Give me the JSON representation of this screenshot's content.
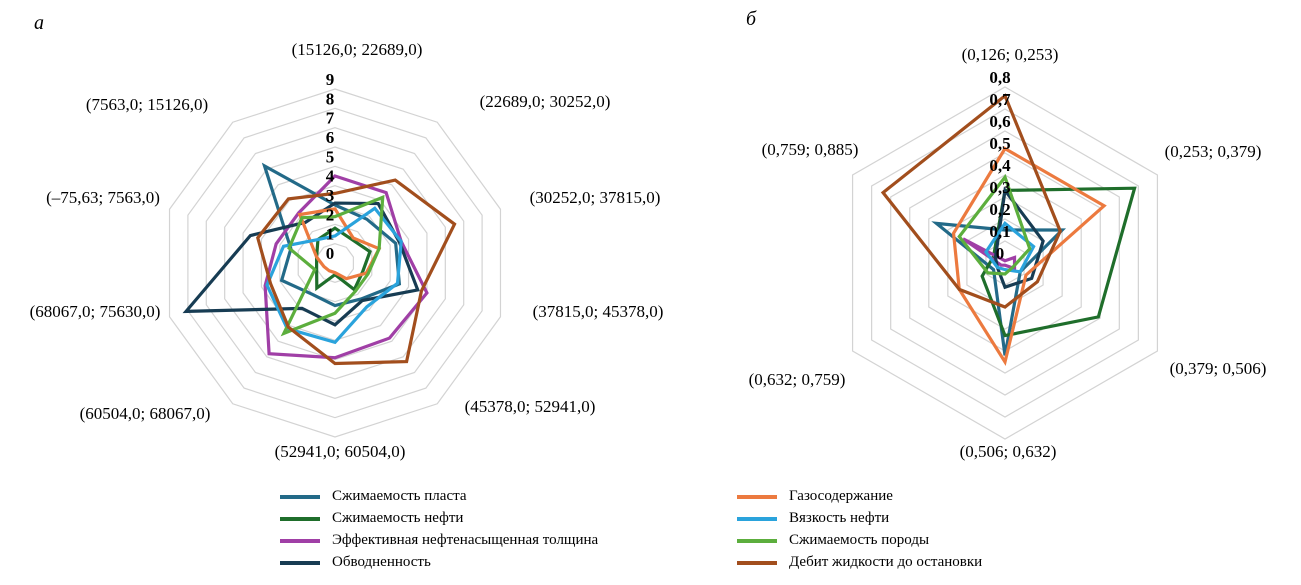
{
  "panels": {
    "a": "а",
    "b": "б"
  },
  "series": [
    {
      "name": "Сжимаемость пласта",
      "color": "#236a88"
    },
    {
      "name": "Сжимаемость нефти",
      "color": "#1f6e2b"
    },
    {
      "name": "Эффективная нефтенасыщенная толщина",
      "color": "#a03fa6"
    },
    {
      "name": "Обводненность",
      "color": "#173c53"
    },
    {
      "name": "Газосодержание",
      "color": "#ec7a3f"
    },
    {
      "name": "Вязкость нефти",
      "color": "#2aa3dc"
    },
    {
      "name": "Сжимаемость породы",
      "color": "#5cae3d"
    },
    {
      "name": "Дебит жидкости до остановки",
      "color": "#a24e1d"
    }
  ],
  "chart_data": [
    {
      "type": "radar",
      "panel": "а",
      "categories": [
        "(15126,0; 22689,0)",
        "(22689,0; 30252,0)",
        "(30252,0; 37815,0)",
        "(37815,0; 45378,0)",
        "(45378,0; 52941,0)",
        "(52941,0; 60504,0)",
        "(60504,0; 68067,0)",
        "(68067,0; 75630,0)",
        "(–75,63; 7563,0)",
        "(7563,0; 15126,0)"
      ],
      "ticks": [
        "0",
        "1",
        "2",
        "3",
        "4",
        "5",
        "6",
        "7",
        "8",
        "9"
      ],
      "range": [
        0,
        9
      ],
      "grid": true,
      "series": [
        {
          "name": "Сжимаемость пласта",
          "values": [
            3.0,
            2.8,
            3.3,
            3.5,
            2.3,
            2.2,
            2.0,
            2.9,
            2.4,
            6.2
          ]
        },
        {
          "name": "Сжимаемость нефти",
          "values": [
            1.8,
            1.5,
            1.9,
            1.5,
            1.7,
            0.6,
            1.6,
            1.0,
            1.0,
            1.5
          ]
        },
        {
          "name": "Эффективная нефтенасыщенная толщина",
          "values": [
            4.5,
            4.5,
            3.6,
            5.0,
            4.8,
            4.9,
            5.8,
            3.8,
            3.2,
            3.2
          ]
        },
        {
          "name": "Обводненность",
          "values": [
            3.1,
            3.8,
            3.5,
            4.5,
            2.4,
            3.2,
            2.9,
            8.1,
            4.6,
            2.6
          ]
        },
        {
          "name": "Газосодержание",
          "values": [
            2.8,
            1.6,
            2.4,
            1.7,
            1.0,
            0.5,
            0.5,
            0.6,
            1.0,
            3.1
          ]
        },
        {
          "name": "Вязкость нефти",
          "values": [
            1.4,
            3.5,
            3.6,
            3.4,
            2.8,
            4.1,
            4.2,
            3.7,
            2.8,
            1.5
          ]
        },
        {
          "name": "Сжимаемость породы",
          "values": [
            2.4,
            4.2,
            2.4,
            1.8,
            1.8,
            2.6,
            4.5,
            1.1,
            2.5,
            2.9
          ]
        },
        {
          "name": "Дебит жидкости до остановки",
          "values": [
            3.6,
            5.3,
            6.5,
            4.7,
            6.3,
            5.2,
            4.1,
            3.5,
            4.2,
            4.1
          ]
        }
      ]
    },
    {
      "type": "radar",
      "panel": "б",
      "categories": [
        "(0,126; 0,253)",
        "(0,253; 0,379)",
        "(0,379; 0,506)",
        "(0,506; 0,632)",
        "(0,632; 0,759)",
        "(0,759; 0,885)"
      ],
      "ticks": [
        "0",
        "0,1",
        "0,2",
        "0,3",
        "0,4",
        "0,5",
        "0,6",
        "0,7",
        "0,8"
      ],
      "range": [
        0,
        0.8
      ],
      "grid": true,
      "series": [
        {
          "name": "Сжимаемость пласта",
          "values": [
            0.15,
            0.3,
            0.08,
            0.42,
            0.06,
            0.36
          ]
        },
        {
          "name": "Сжимаемость нефти",
          "values": [
            0.33,
            0.68,
            0.49,
            0.33,
            0.12,
            0.06
          ]
        },
        {
          "name": "Эффективная нефтенасыщенная толщина",
          "values": [
            0.01,
            0.05,
            0.05,
            0.01,
            0.02,
            0.22
          ]
        },
        {
          "name": "Обводненность",
          "values": [
            0.33,
            0.2,
            0.14,
            0.11,
            0.04,
            0.05
          ]
        },
        {
          "name": "Газосодержание",
          "values": [
            0.52,
            0.52,
            0.11,
            0.45,
            0.24,
            0.27
          ]
        },
        {
          "name": "Вязкость нефти",
          "values": [
            0.18,
            0.15,
            0.08,
            0.03,
            0.04,
            0.1
          ]
        },
        {
          "name": "Сжимаемость породы",
          "values": [
            0.39,
            0.13,
            0.04,
            0.05,
            0.09,
            0.24
          ]
        },
        {
          "name": "Дебит жидкости до остановки",
          "values": [
            0.76,
            0.29,
            0.17,
            0.2,
            0.24,
            0.64
          ]
        }
      ]
    }
  ]
}
